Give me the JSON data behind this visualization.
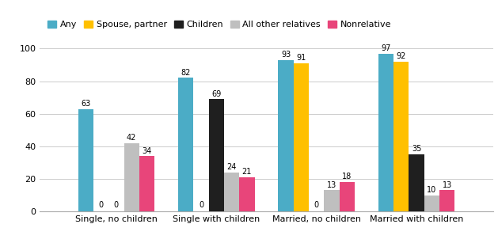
{
  "categories": [
    "Single, no children",
    "Single with children",
    "Married, no children",
    "Married with children"
  ],
  "series": [
    {
      "label": "Any",
      "color": "#4BACC6",
      "values": [
        63,
        82,
        93,
        97
      ]
    },
    {
      "label": "Spouse, partner",
      "color": "#FFC000",
      "values": [
        0,
        0,
        91,
        92
      ]
    },
    {
      "label": "Children",
      "color": "#1F1F1F",
      "values": [
        0,
        69,
        0,
        35
      ]
    },
    {
      "label": "All other relatives",
      "color": "#BFBFBF",
      "values": [
        42,
        24,
        13,
        10
      ]
    },
    {
      "label": "Nonrelative",
      "color": "#E8457A",
      "values": [
        34,
        21,
        18,
        13
      ]
    }
  ],
  "ylim": [
    0,
    100
  ],
  "yticks": [
    0,
    20,
    40,
    60,
    80,
    100
  ],
  "bar_width": 0.11,
  "group_centers": [
    0.35,
    1.07,
    1.79,
    2.51
  ],
  "label_fontsize": 7.0,
  "legend_fontsize": 8.0,
  "tick_fontsize": 8.0,
  "figure_width": 6.29,
  "figure_height": 3.07,
  "dpi": 100,
  "background_color": "#FFFFFF",
  "grid_color": "#CCCCCC"
}
